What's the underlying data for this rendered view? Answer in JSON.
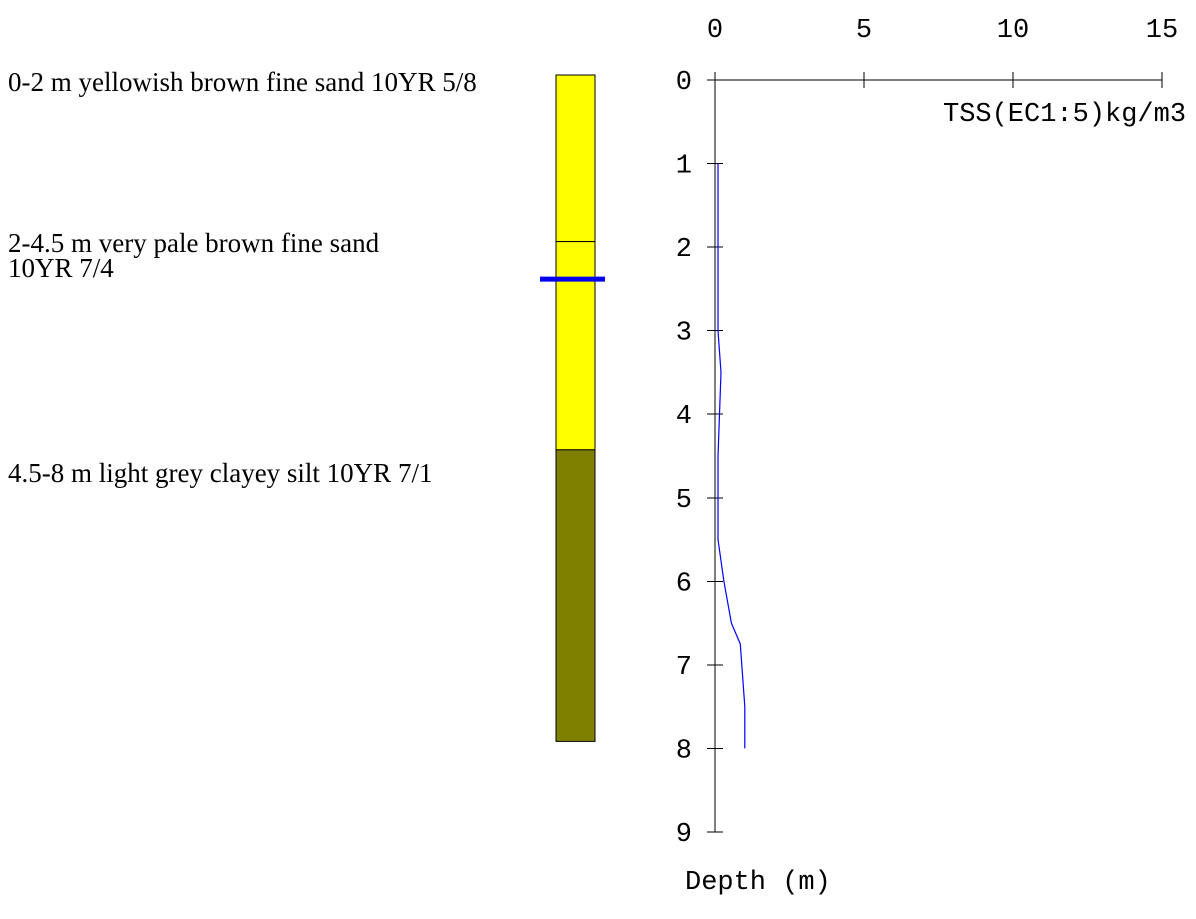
{
  "soil_profile": {
    "layers": [
      {
        "top": 0,
        "bottom": 2,
        "color": "#ffff00",
        "label_lines": [
          "0-2 m yellowish brown fine sand 10YR 5/8"
        ]
      },
      {
        "top": 2,
        "bottom": 4.5,
        "color": "#ffff00",
        "label_lines": [
          "2-4.5 m very pale brown fine sand",
          "10YR 7/4"
        ]
      },
      {
        "top": 4.5,
        "bottom": 8,
        "color": "#808000",
        "label_lines": [
          "4.5-8 m light grey clayey silt 10YR 7/1"
        ]
      }
    ],
    "outline_color": "#000000",
    "water_level_depth": 2.45,
    "water_level_color": "#0000ee"
  },
  "chart_data": {
    "type": "line",
    "xlabel": "TSS(EC1:5)kg/m3",
    "ylabel": "Depth (m)",
    "xlim": [
      0,
      15
    ],
    "ylim": [
      0,
      9
    ],
    "x_ticks": [
      0,
      5,
      10,
      15
    ],
    "y_ticks": [
      0,
      1,
      2,
      3,
      4,
      5,
      6,
      7,
      8,
      9
    ],
    "x_axis_position": "top",
    "y_axis_inverted": true,
    "grid": false,
    "axis_color": "#000000",
    "series": [
      {
        "color": "#0000ff",
        "x": [
          0.1,
          0.1,
          0.1,
          0.2,
          0.15,
          0.1,
          0.1,
          0.1,
          0.3,
          0.55,
          0.85,
          0.9,
          1.0,
          1.0
        ],
        "y": [
          1,
          2,
          3,
          3.5,
          4,
          4.5,
          5,
          5.5,
          6,
          6.5,
          6.75,
          7,
          7.5,
          8
        ]
      }
    ]
  }
}
